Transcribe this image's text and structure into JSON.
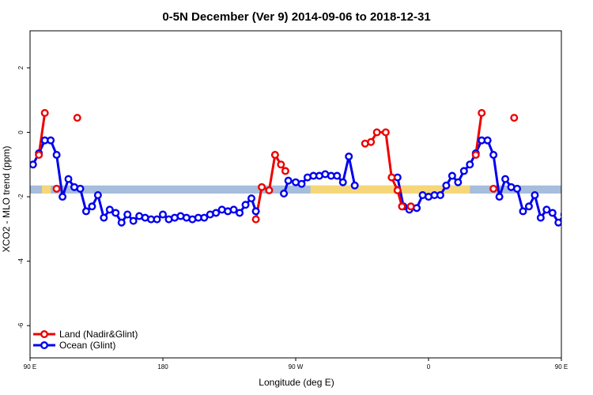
{
  "chart_data": {
    "type": "line",
    "title": "0-5N December (Ver 9)   2014-09-06 to 2018-12-31",
    "xlabel": "Longitude (deg E)",
    "ylabel": "XCO2 - MLO trend (ppm)",
    "xlim": [
      90,
      450
    ],
    "ylim": [
      -7.0,
      3.15
    ],
    "x_ticks": [
      {
        "value": 90,
        "label": "90 E"
      },
      {
        "value": 180,
        "label": "180"
      },
      {
        "value": 270,
        "label": "90 W"
      },
      {
        "value": 360,
        "label": "0"
      },
      {
        "value": 450,
        "label": "90 E"
      },
      {
        "value": 540,
        "label": "180"
      }
    ],
    "y_ticks": [
      {
        "value": 2,
        "label": "2"
      },
      {
        "value": 0,
        "label": "0"
      },
      {
        "value": -2,
        "label": "-2"
      },
      {
        "value": -4,
        "label": "-4"
      },
      {
        "value": -6,
        "label": "-6"
      }
    ],
    "reference_band": {
      "y_min": -1.9,
      "y_max": -1.65,
      "color": "#a6bddb"
    },
    "highlight_ranges": [
      {
        "x_min": 98,
        "x_max": 104,
        "color": "#f5d77a"
      },
      {
        "x_min": 280,
        "x_max": 388,
        "color": "#f5d77a"
      },
      {
        "x_min": 458,
        "x_max": 464,
        "color": "#f5d77a"
      }
    ],
    "legend_position": "bottom-left",
    "series": [
      {
        "name": "Ocean (Glint)",
        "color": "#0000ee",
        "points": [
          [
            92,
            -1.0
          ],
          [
            96,
            -0.65
          ],
          [
            100,
            -0.25
          ],
          [
            104,
            -0.25
          ],
          [
            108,
            -0.7
          ],
          [
            112,
            -2.0
          ],
          [
            116,
            -1.45
          ],
          [
            120,
            -1.7
          ],
          [
            124,
            -1.75
          ],
          [
            128,
            -2.45
          ],
          [
            132,
            -2.3
          ],
          [
            136,
            -1.95
          ],
          [
            140,
            -2.65
          ],
          [
            144,
            -2.4
          ],
          [
            148,
            -2.5
          ],
          [
            152,
            -2.8
          ],
          [
            156,
            -2.55
          ],
          [
            160,
            -2.75
          ],
          [
            164,
            -2.6
          ],
          [
            168,
            -2.65
          ],
          [
            172,
            -2.7
          ],
          [
            176,
            -2.7
          ],
          [
            180,
            -2.55
          ],
          [
            184,
            -2.7
          ],
          [
            188,
            -2.65
          ],
          [
            192,
            -2.6
          ],
          [
            196,
            -2.65
          ],
          [
            200,
            -2.7
          ],
          [
            204,
            -2.65
          ],
          [
            208,
            -2.65
          ],
          [
            212,
            -2.55
          ],
          [
            216,
            -2.5
          ],
          [
            220,
            -2.4
          ],
          [
            224,
            -2.45
          ],
          [
            228,
            -2.4
          ],
          [
            232,
            -2.5
          ],
          [
            236,
            -2.25
          ],
          [
            240,
            -2.05
          ],
          [
            243,
            -2.45
          ],
          [
            262,
            -1.9
          ],
          [
            265,
            -1.5
          ],
          [
            270,
            -1.55
          ],
          [
            274,
            -1.6
          ],
          [
            278,
            -1.4
          ],
          [
            282,
            -1.35
          ],
          [
            286,
            -1.35
          ],
          [
            290,
            -1.3
          ],
          [
            294,
            -1.35
          ],
          [
            298,
            -1.35
          ],
          [
            302,
            -1.55
          ],
          [
            306,
            -0.75
          ],
          [
            310,
            -1.65
          ],
          [
            339,
            -1.4
          ],
          [
            343,
            -2.3
          ],
          [
            347,
            -2.4
          ],
          [
            352,
            -2.35
          ],
          [
            356,
            -1.95
          ],
          [
            360,
            -2.0
          ],
          [
            364,
            -1.95
          ],
          [
            368,
            -1.95
          ],
          [
            372,
            -1.65
          ],
          [
            376,
            -1.35
          ],
          [
            380,
            -1.55
          ],
          [
            384,
            -1.2
          ],
          [
            388,
            -1.0
          ],
          [
            392,
            -0.65
          ],
          [
            396,
            -0.25
          ],
          [
            400,
            -0.25
          ],
          [
            404,
            -0.7
          ],
          [
            408,
            -2.0
          ],
          [
            412,
            -1.45
          ],
          [
            416,
            -1.7
          ],
          [
            420,
            -1.75
          ],
          [
            424,
            -2.45
          ],
          [
            428,
            -2.3
          ],
          [
            432,
            -1.95
          ],
          [
            436,
            -2.65
          ],
          [
            440,
            -2.4
          ],
          [
            444,
            -2.5
          ],
          [
            448,
            -2.8
          ],
          [
            452,
            -2.55
          ],
          [
            456,
            -2.75
          ]
        ]
      },
      {
        "name": "Land (Nadir&Glint)",
        "color": "#ee0000",
        "points": [
          [
            96,
            -0.7
          ],
          [
            100,
            0.6
          ],
          [
            108,
            -1.75
          ],
          [
            122,
            0.45
          ],
          [
            243,
            -2.7
          ],
          [
            247,
            -1.7
          ],
          [
            252,
            -1.8
          ],
          [
            256,
            -0.7
          ],
          [
            260,
            -1.0
          ],
          [
            263,
            -1.2
          ],
          [
            317,
            -0.35
          ],
          [
            321,
            -0.3
          ],
          [
            325,
            0.0
          ],
          [
            331,
            0.0
          ],
          [
            335,
            -1.4
          ],
          [
            339,
            -1.8
          ],
          [
            342,
            -2.3
          ],
          [
            348,
            -2.3
          ],
          [
            392,
            -0.7
          ],
          [
            396,
            0.6
          ],
          [
            404,
            -1.75
          ],
          [
            418,
            0.45
          ]
        ],
        "segments": [
          [
            [
              96,
              -0.7
            ],
            [
              100,
              0.6
            ]
          ],
          [
            [
              243,
              -2.7
            ],
            [
              247,
              -1.7
            ],
            [
              252,
              -1.8
            ],
            [
              256,
              -0.7
            ],
            [
              260,
              -1.0
            ],
            [
              263,
              -1.2
            ]
          ],
          [
            [
              317,
              -0.35
            ],
            [
              321,
              -0.3
            ],
            [
              325,
              0.0
            ],
            [
              331,
              0.0
            ],
            [
              335,
              -1.4
            ],
            [
              339,
              -1.8
            ],
            [
              342,
              -2.3
            ],
            [
              348,
              -2.3
            ]
          ],
          [
            [
              392,
              -0.7
            ],
            [
              396,
              0.6
            ]
          ]
        ]
      }
    ],
    "legend": [
      {
        "label": "Land (Nadir&Glint)",
        "color": "#ee0000"
      },
      {
        "label": "Ocean (Glint)",
        "color": "#0000ee"
      }
    ]
  }
}
